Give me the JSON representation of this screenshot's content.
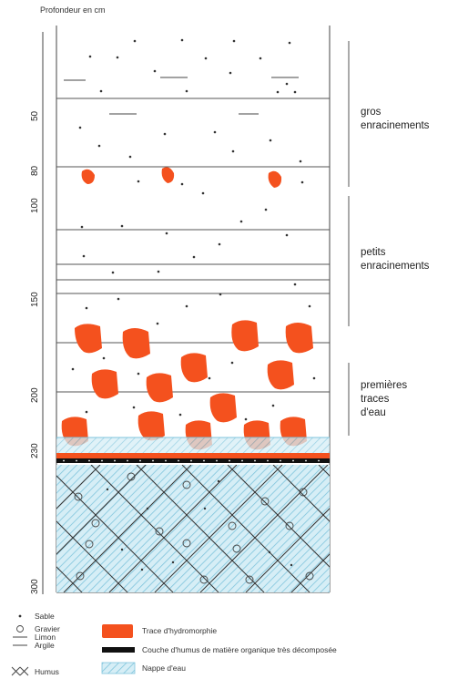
{
  "title": "Profondeur en cm",
  "depth_ticks": [
    "50",
    "80",
    "100",
    "150",
    "200",
    "230",
    "300"
  ],
  "zones": [
    {
      "lines": [
        "gros",
        "enracinements"
      ]
    },
    {
      "lines": [
        "petits",
        "enracinements"
      ]
    },
    {
      "lines": [
        "premières",
        "traces",
        "d'eau"
      ]
    }
  ],
  "legend": {
    "sable": "Sable",
    "gravier": "Gravier",
    "limon": "Limon",
    "argile": "Argile",
    "humus": "Humus",
    "hydromorphie": "Trace d'hydromorphie",
    "couche_humus": "Couche d'humus de matière organique très décomposée",
    "nappe": "Nappe d'eau"
  },
  "colors": {
    "hydromorphie": "#f4511e",
    "nappe": "#d6eef6",
    "hatch": "#7fc4dc",
    "humus_layer": "#111111",
    "line": "#444444"
  }
}
